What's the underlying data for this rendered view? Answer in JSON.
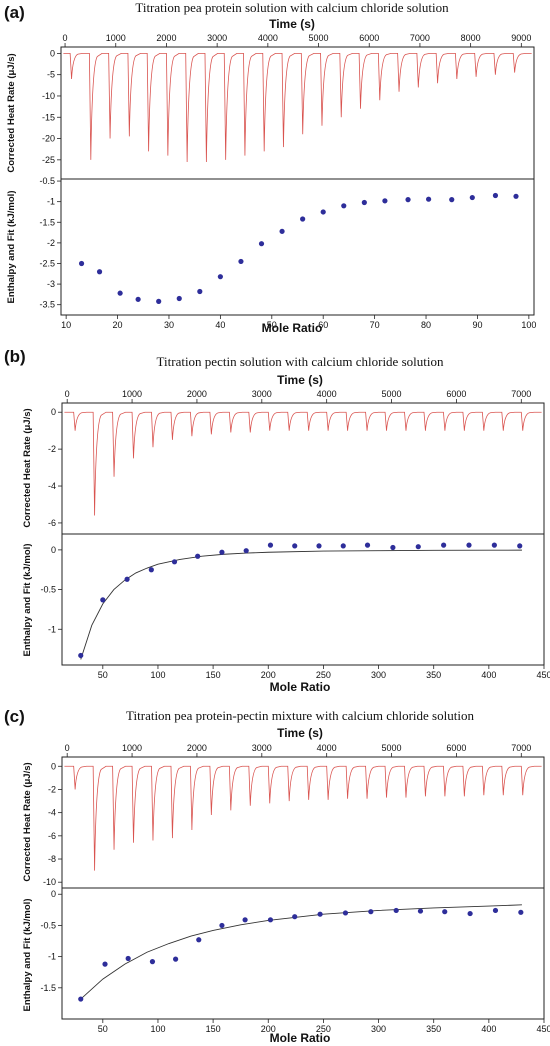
{
  "chart_data": [
    {
      "type": "scatter",
      "label": "(a)",
      "title": "Titration pea protein solution with calcium chloride solution",
      "top_xlabel": "Time (s)",
      "top_xticks": [
        0,
        1000,
        2000,
        3000,
        4000,
        5000,
        6000,
        7000,
        8000,
        9000
      ],
      "heat_ylabel": "Corrected Heat Rate (μJ/s)",
      "heat_yticks": [
        0,
        -5,
        -10,
        -15,
        -20,
        -25
      ],
      "heat_ylim": [
        -29.5,
        1.5
      ],
      "time_lim": [
        -80,
        9250
      ],
      "injection_times": [
        100,
        480,
        860,
        1240,
        1620,
        2000,
        2380,
        2760,
        3140,
        3520,
        3900,
        4280,
        4660,
        5040,
        5420,
        5800,
        6180,
        6560,
        6940,
        7320,
        7700,
        8080,
        8460,
        8840
      ],
      "peak_heat": [
        -6,
        -25,
        -20,
        -19.5,
        -23,
        -24,
        -25.5,
        -25.5,
        -25,
        -24,
        -23,
        -22,
        -19,
        -17,
        -15,
        -13,
        -11,
        -9,
        -8,
        -7,
        -6,
        -5.5,
        -5,
        -4.5
      ],
      "enthalpy_ylabel": "Enthalpy and Fit (kJ/mol)",
      "enthalpy_yticks": [
        -0.5,
        -1.0,
        -1.5,
        -2.0,
        -2.5,
        -3.0,
        -3.5
      ],
      "enthalpy_ylim": [
        -3.75,
        -0.45
      ],
      "xlabel": "Mole Ratio",
      "xticks": [
        10,
        20,
        30,
        40,
        50,
        60,
        70,
        80,
        90,
        100
      ],
      "xlim": [
        9,
        101
      ],
      "points": {
        "x": [
          13,
          16.5,
          20.5,
          24,
          28,
          32,
          36,
          40,
          44,
          48,
          52,
          56,
          60,
          64,
          68,
          72,
          76.5,
          80.5,
          85,
          89,
          93.5,
          97.5
        ],
        "y": [
          -2.5,
          -2.7,
          -3.22,
          -3.37,
          -3.42,
          -3.35,
          -3.18,
          -2.82,
          -2.45,
          -2.02,
          -1.72,
          -1.42,
          -1.25,
          -1.1,
          -1.02,
          -0.98,
          -0.95,
          -0.94,
          -0.95,
          -0.9,
          -0.85,
          -0.87
        ]
      },
      "fit": null
    },
    {
      "type": "scatter",
      "label": "(b)",
      "title": "Titration pectin solution with calcium chloride solution",
      "top_xlabel": "Time (s)",
      "top_xticks": [
        0,
        1000,
        2000,
        3000,
        4000,
        5000,
        6000,
        7000
      ],
      "heat_ylabel": "Corrected Heat Rate (μJ/s)",
      "heat_yticks": [
        0,
        -2,
        -4,
        -6
      ],
      "heat_ylim": [
        -6.6,
        0.5
      ],
      "time_lim": [
        -80,
        7350
      ],
      "injection_times": [
        100,
        400,
        700,
        1000,
        1300,
        1600,
        1900,
        2200,
        2500,
        2800,
        3100,
        3400,
        3700,
        4000,
        4300,
        4600,
        4900,
        5200,
        5500,
        5800,
        6100,
        6400,
        6700,
        7000
      ],
      "peak_heat": [
        -1,
        -5.6,
        -3.5,
        -2.5,
        -1.9,
        -1.5,
        -1.3,
        -1.2,
        -1.1,
        -1.1,
        -1,
        -1,
        -1,
        -1,
        -1,
        -1,
        -1,
        -1,
        -1,
        -1,
        -1,
        -1,
        -1,
        -1
      ],
      "enthalpy_ylabel": "Enthalpy and Fit (kJ/mol)",
      "enthalpy_yticks": [
        0,
        -0.5,
        -1.0
      ],
      "enthalpy_ylim": [
        -1.45,
        0.2
      ],
      "xlabel": "Mole Ratio",
      "xticks": [
        50,
        100,
        150,
        200,
        250,
        300,
        350,
        400,
        450
      ],
      "xlim": [
        13,
        450
      ],
      "points": {
        "x": [
          30,
          50,
          72,
          94,
          115,
          136,
          158,
          180,
          202,
          224,
          246,
          268,
          290,
          313,
          336,
          359,
          382,
          405,
          428
        ],
        "y": [
          -1.33,
          -0.63,
          -0.37,
          -0.25,
          -0.15,
          -0.08,
          -0.03,
          -0.01,
          0.06,
          0.05,
          0.05,
          0.05,
          0.06,
          0.03,
          0.04,
          0.06,
          0.06,
          0.06,
          0.05
        ]
      },
      "fit": {
        "x": [
          30,
          40,
          50,
          60,
          70,
          80,
          90,
          100,
          120,
          140,
          160,
          180,
          200,
          250,
          300,
          350,
          400,
          430
        ],
        "y": [
          -1.38,
          -0.95,
          -0.68,
          -0.5,
          -0.38,
          -0.29,
          -0.23,
          -0.18,
          -0.12,
          -0.08,
          -0.055,
          -0.04,
          -0.03,
          -0.015,
          -0.01,
          -0.006,
          -0.004,
          -0.003
        ]
      }
    },
    {
      "type": "scatter",
      "label": "(c)",
      "title": "Titration pea protein-pectin mixture with calcium chloride solution",
      "top_xlabel": "Time (s)",
      "top_xticks": [
        0,
        1000,
        2000,
        3000,
        4000,
        5000,
        6000,
        7000
      ],
      "heat_ylabel": "Corrected Heat Rate (μJ/s)",
      "heat_yticks": [
        0,
        -2,
        -4,
        -6,
        -8,
        -10
      ],
      "heat_ylim": [
        -10.5,
        0.8
      ],
      "time_lim": [
        -80,
        7350
      ],
      "injection_times": [
        100,
        400,
        700,
        1000,
        1300,
        1600,
        1900,
        2200,
        2500,
        2800,
        3100,
        3400,
        3700,
        4000,
        4300,
        4600,
        4900,
        5200,
        5500,
        5800,
        6100,
        6400,
        6700,
        7000
      ],
      "peak_heat": [
        -2,
        -9,
        -7.2,
        -6.6,
        -6.4,
        -6.2,
        -5.5,
        -4.2,
        -3.8,
        -3.4,
        -3.2,
        -3,
        -2.9,
        -2.9,
        -2.8,
        -2.8,
        -2.7,
        -2.7,
        -2.6,
        -2.6,
        -2.6,
        -2.5,
        -2.5,
        -2.5
      ],
      "enthalpy_ylabel": "Enthalpy and Fit (kJ/mol)",
      "enthalpy_yticks": [
        0,
        -0.5,
        -1.0,
        -1.5
      ],
      "enthalpy_ylim": [
        -2.0,
        0.1
      ],
      "xlabel": "Mole Ratio",
      "xticks": [
        50,
        100,
        150,
        200,
        250,
        300,
        350,
        400,
        450
      ],
      "xlim": [
        13,
        450
      ],
      "points": {
        "x": [
          30,
          52,
          73,
          95,
          116,
          137,
          158,
          179,
          202,
          224,
          247,
          270,
          293,
          316,
          338,
          360,
          383,
          406,
          429
        ],
        "y": [
          -1.68,
          -1.12,
          -1.03,
          -1.08,
          -1.04,
          -0.73,
          -0.5,
          -0.41,
          -0.41,
          -0.36,
          -0.32,
          -0.3,
          -0.28,
          -0.26,
          -0.27,
          -0.28,
          -0.31,
          -0.26,
          -0.29
        ]
      },
      "fit": {
        "x": [
          30,
          50,
          70,
          90,
          110,
          130,
          150,
          175,
          200,
          250,
          300,
          350,
          400,
          430
        ],
        "y": [
          -1.68,
          -1.36,
          -1.12,
          -0.93,
          -0.79,
          -0.67,
          -0.58,
          -0.49,
          -0.42,
          -0.32,
          -0.26,
          -0.22,
          -0.19,
          -0.17
        ]
      }
    }
  ]
}
